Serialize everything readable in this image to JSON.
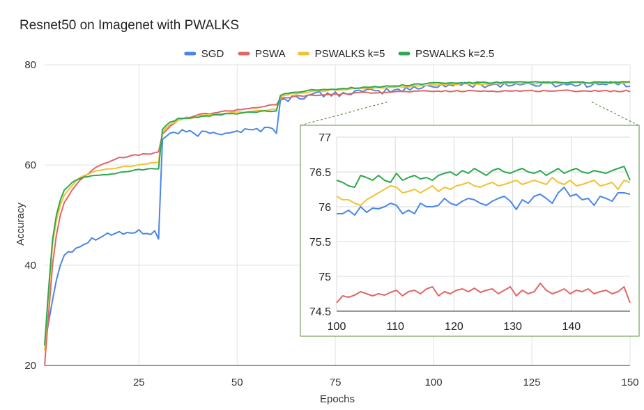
{
  "chart_data": [
    {
      "type": "line",
      "title": "Resnet50 on Imagenet with PWALKS",
      "xlabel": "Epochs",
      "ylabel": "Accuracy",
      "xlim": [
        1,
        150
      ],
      "ylim": [
        20,
        80
      ],
      "x_ticks": [
        25,
        50,
        75,
        100,
        125,
        150
      ],
      "y_ticks": [
        20,
        40,
        60,
        80
      ],
      "grid": true,
      "legend_position": "top-center",
      "series": [
        {
          "name": "SGD",
          "color": "#4a86e8",
          "anchors": [
            [
              1,
              24
            ],
            [
              2,
              28.5
            ],
            [
              3,
              33
            ],
            [
              4,
              37
            ],
            [
              5,
              40
            ],
            [
              6,
              42
            ],
            [
              7,
              42.8
            ],
            [
              10,
              44
            ],
            [
              15,
              46
            ],
            [
              20,
              46.5
            ],
            [
              29,
              46.5
            ],
            [
              30,
              45.5
            ],
            [
              31,
              65
            ],
            [
              32,
              66
            ],
            [
              35,
              66.6
            ],
            [
              40,
              66.2
            ],
            [
              50,
              66.8
            ],
            [
              55,
              67
            ],
            [
              59,
              67.5
            ],
            [
              60,
              66.8
            ],
            [
              61,
              72.5
            ],
            [
              62,
              73
            ],
            [
              65,
              73.5
            ],
            [
              70,
              74
            ],
            [
              75,
              74.2
            ],
            [
              80,
              74.5
            ],
            [
              85,
              74.6
            ],
            [
              90,
              74.9
            ],
            [
              95,
              75.2
            ],
            [
              100,
              75.9
            ],
            [
              110,
              76
            ],
            [
              120,
              76.05
            ],
            [
              130,
              76.1
            ],
            [
              140,
              76.1
            ],
            [
              150,
              76.15
            ]
          ],
          "wiggle": 0.6
        },
        {
          "name": "PSWA",
          "color": "#e06666",
          "anchors": [
            [
              1,
              20
            ],
            [
              2,
              30
            ],
            [
              3,
              40
            ],
            [
              4,
              46
            ],
            [
              5,
              50
            ],
            [
              6,
              52.5
            ],
            [
              8,
              55
            ],
            [
              10,
              57
            ],
            [
              15,
              60
            ],
            [
              20,
              61.5
            ],
            [
              25,
              62
            ],
            [
              30,
              62.5
            ],
            [
              31,
              66
            ],
            [
              32,
              67
            ],
            [
              35,
              69
            ],
            [
              40,
              70
            ],
            [
              45,
              70.5
            ],
            [
              50,
              71
            ],
            [
              55,
              71.5
            ],
            [
              60,
              72
            ],
            [
              61,
              73.2
            ],
            [
              62,
              73.4
            ],
            [
              65,
              73.7
            ],
            [
              70,
              73.9
            ],
            [
              75,
              74.1
            ],
            [
              80,
              74.3
            ],
            [
              85,
              74.5
            ],
            [
              90,
              74.6
            ],
            [
              100,
              74.7
            ],
            [
              110,
              74.75
            ],
            [
              120,
              74.78
            ],
            [
              130,
              74.8
            ],
            [
              140,
              74.8
            ],
            [
              150,
              74.75
            ]
          ],
          "wiggle": 0.15
        },
        {
          "name": "PSWALKS k=5",
          "color": "#f1c232",
          "anchors": [
            [
              1,
              23
            ],
            [
              2,
              34
            ],
            [
              3,
              44
            ],
            [
              4,
              49
            ],
            [
              5,
              52
            ],
            [
              6,
              54
            ],
            [
              8,
              56
            ],
            [
              10,
              57.5
            ],
            [
              15,
              59
            ],
            [
              20,
              59.5
            ],
            [
              25,
              60
            ],
            [
              30,
              60.5
            ],
            [
              31,
              66.5
            ],
            [
              32,
              67.5
            ],
            [
              35,
              69
            ],
            [
              40,
              69.7
            ],
            [
              45,
              70.2
            ],
            [
              50,
              70.5
            ],
            [
              55,
              70.8
            ],
            [
              60,
              71.2
            ],
            [
              61,
              73.5
            ],
            [
              62,
              73.9
            ],
            [
              65,
              74.3
            ],
            [
              70,
              74.7
            ],
            [
              75,
              75
            ],
            [
              80,
              75.2
            ],
            [
              85,
              75.4
            ],
            [
              90,
              75.5
            ],
            [
              100,
              76
            ],
            [
              110,
              76.2
            ],
            [
              120,
              76.3
            ],
            [
              130,
              76.35
            ],
            [
              140,
              76.35
            ],
            [
              150,
              76.35
            ]
          ],
          "wiggle": 0.15
        },
        {
          "name": "PSWALKS k=2.5",
          "color": "#2ea84e",
          "anchors": [
            [
              1,
              24
            ],
            [
              2,
              35
            ],
            [
              3,
              45
            ],
            [
              4,
              50
            ],
            [
              5,
              53
            ],
            [
              6,
              55
            ],
            [
              8,
              56.5
            ],
            [
              10,
              57.3
            ],
            [
              15,
              58
            ],
            [
              20,
              58.5
            ],
            [
              25,
              59
            ],
            [
              30,
              59.3
            ],
            [
              31,
              67
            ],
            [
              32,
              68
            ],
            [
              35,
              69.3
            ],
            [
              40,
              69.5
            ],
            [
              45,
              70
            ],
            [
              50,
              70.3
            ],
            [
              55,
              70.6
            ],
            [
              60,
              70.8
            ],
            [
              61,
              73.8
            ],
            [
              62,
              74.2
            ],
            [
              65,
              74.6
            ],
            [
              70,
              75
            ],
            [
              75,
              75.2
            ],
            [
              80,
              75.4
            ],
            [
              85,
              75.6
            ],
            [
              90,
              75.8
            ],
            [
              100,
              76.35
            ],
            [
              110,
              76.4
            ],
            [
              120,
              76.5
            ],
            [
              130,
              76.5
            ],
            [
              140,
              76.5
            ],
            [
              150,
              76.5
            ]
          ],
          "wiggle": 0.15
        }
      ]
    },
    {
      "type": "line",
      "title": "",
      "xlabel": "",
      "ylabel": "",
      "xlim": [
        100,
        150
      ],
      "ylim": [
        74.5,
        77
      ],
      "x_ticks": [
        100,
        110,
        120,
        130,
        140
      ],
      "y_ticks": [
        74.5,
        75,
        75.5,
        76,
        76.5,
        77
      ],
      "grid": true,
      "series": [
        {
          "name": "SGD",
          "color": "#4a86e8",
          "values": [
            75.9,
            75.9,
            75.95,
            75.88,
            76.0,
            75.92,
            75.98,
            75.97,
            76.0,
            76.05,
            76.02,
            75.9,
            75.95,
            75.9,
            76.05,
            76.0,
            76.0,
            76.02,
            76.12,
            76.05,
            76.02,
            76.08,
            76.12,
            76.1,
            76.05,
            76.02,
            76.08,
            76.12,
            76.15,
            76.08,
            75.96,
            76.1,
            76.05,
            76.15,
            76.18,
            76.12,
            76.05,
            76.2,
            76.28,
            76.15,
            76.18,
            76.1,
            76.12,
            76.02,
            76.15,
            76.12,
            76.08,
            76.2,
            76.2,
            76.18
          ]
        },
        {
          "name": "PSWA",
          "color": "#e06666",
          "values": [
            74.62,
            74.72,
            74.7,
            74.73,
            74.78,
            74.75,
            74.72,
            74.75,
            74.73,
            74.77,
            74.8,
            74.72,
            74.78,
            74.8,
            74.75,
            74.82,
            74.85,
            74.72,
            74.78,
            74.75,
            74.8,
            74.82,
            74.78,
            74.83,
            74.77,
            74.8,
            74.82,
            74.75,
            74.8,
            74.85,
            74.72,
            74.8,
            74.75,
            74.78,
            74.9,
            74.8,
            74.75,
            74.78,
            74.82,
            74.75,
            74.8,
            74.78,
            74.82,
            74.75,
            74.78,
            74.8,
            74.75,
            74.78,
            74.85,
            74.62
          ]
        },
        {
          "name": "PSWALKS k=5",
          "color": "#f1c232",
          "values": [
            76.15,
            76.1,
            76.1,
            76.05,
            76.02,
            76.1,
            76.15,
            76.2,
            76.25,
            76.3,
            76.28,
            76.2,
            76.22,
            76.25,
            76.2,
            76.25,
            76.3,
            76.22,
            76.28,
            76.25,
            76.3,
            76.32,
            76.35,
            76.3,
            76.28,
            76.32,
            76.35,
            76.3,
            76.32,
            76.35,
            76.38,
            76.32,
            76.35,
            76.38,
            76.35,
            76.32,
            76.42,
            76.35,
            76.32,
            76.38,
            76.3,
            76.32,
            76.35,
            76.38,
            76.3,
            76.32,
            76.35,
            76.25,
            76.38,
            76.35
          ]
        },
        {
          "name": "PSWALKS k=2.5",
          "color": "#2ea84e",
          "values": [
            76.38,
            76.35,
            76.3,
            76.28,
            76.45,
            76.42,
            76.38,
            76.45,
            76.38,
            76.35,
            76.48,
            76.38,
            76.42,
            76.45,
            76.4,
            76.42,
            76.38,
            76.45,
            76.48,
            76.5,
            76.45,
            76.52,
            76.48,
            76.55,
            76.5,
            76.45,
            76.52,
            76.55,
            76.5,
            76.48,
            76.52,
            76.55,
            76.5,
            76.48,
            76.52,
            76.45,
            76.5,
            76.55,
            76.48,
            76.52,
            76.55,
            76.5,
            76.48,
            76.52,
            76.5,
            76.48,
            76.52,
            76.55,
            76.58,
            76.38
          ]
        }
      ]
    }
  ]
}
